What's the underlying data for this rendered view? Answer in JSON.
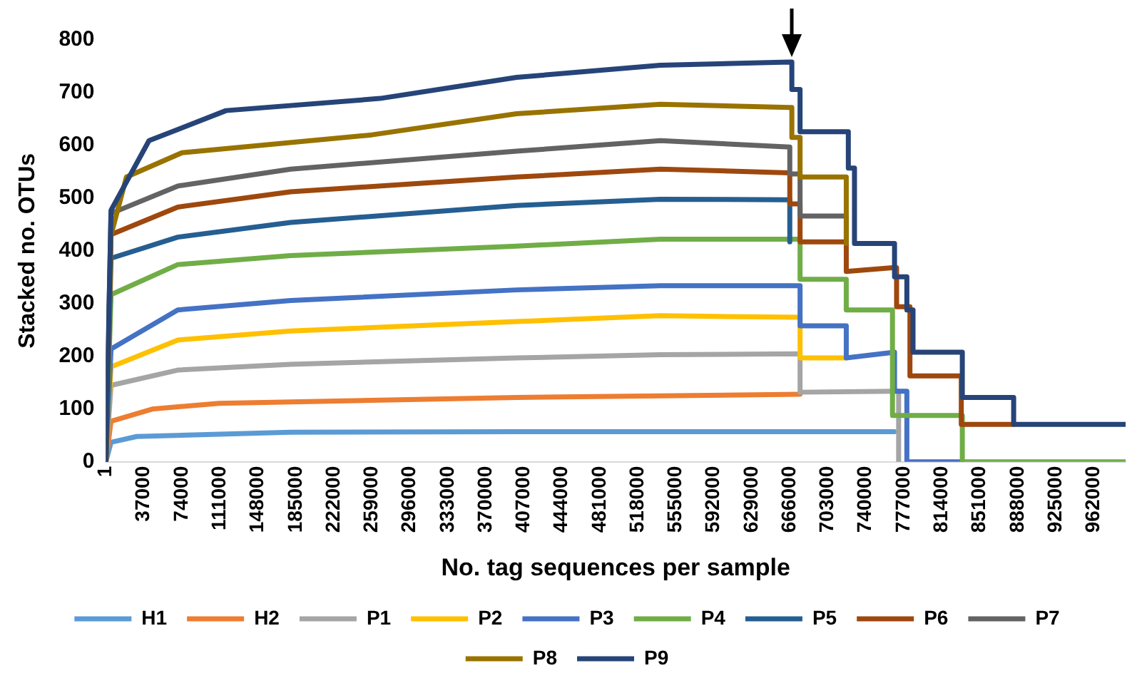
{
  "chart_data": {
    "type": "line",
    "xlabel": "No. tag sequences per sample",
    "ylabel": "Stacked no. OTUs",
    "xlim": [
      1,
      993000
    ],
    "xticks": [
      1,
      37000,
      74000,
      111000,
      148000,
      185000,
      222000,
      259000,
      296000,
      333000,
      370000,
      407000,
      444000,
      481000,
      518000,
      555000,
      592000,
      629000,
      666000,
      703000,
      740000,
      777000,
      814000,
      851000,
      888000,
      925000,
      962000
    ],
    "ylim": [
      0,
      800
    ],
    "yticks": [
      0,
      100,
      200,
      300,
      400,
      500,
      600,
      700,
      800
    ],
    "grid": false,
    "legend": "bottom",
    "marker": "none",
    "line_style": "solid",
    "series": [
      {
        "name": "H1",
        "color": "#5b9bd5",
        "x": [
          1,
          5000,
          30000,
          180000,
          400000,
          666000,
          768000
        ],
        "values": [
          0,
          37,
          48,
          56,
          57,
          57,
          57
        ]
      },
      {
        "name": "H2",
        "color": "#ed7d31",
        "x": [
          1,
          5000,
          45000,
          110000,
          400000,
          676000
        ],
        "values": [
          0,
          77,
          100,
          111,
          122,
          128
        ]
      },
      {
        "name": "P1",
        "color": "#a5a5a5",
        "x": [
          1,
          5000,
          70000,
          180000,
          400000,
          540000,
          676000,
          676000,
          768000,
          772000,
          772000
        ],
        "values": [
          0,
          145,
          174,
          185,
          197,
          203,
          205,
          132,
          134,
          134,
          0
        ]
      },
      {
        "name": "P2",
        "color": "#ffc000",
        "x": [
          1,
          5000,
          70000,
          180000,
          400000,
          540000,
          676000,
          676000,
          721000
        ],
        "values": [
          0,
          180,
          231,
          248,
          266,
          277,
          274,
          197,
          197
        ]
      },
      {
        "name": "P3",
        "color": "#4472c4",
        "x": [
          1,
          5000,
          70000,
          180000,
          400000,
          540000,
          676000,
          676000,
          721000,
          721000,
          768000,
          768000,
          780000,
          780000,
          834000
        ],
        "values": [
          0,
          214,
          288,
          306,
          326,
          334,
          334,
          258,
          258,
          197,
          208,
          134,
          134,
          0,
          0
        ]
      },
      {
        "name": "P4",
        "color": "#70ad47",
        "x": [
          1,
          5000,
          70000,
          180000,
          400000,
          540000,
          676000,
          676000,
          721000,
          721000,
          766000,
          766000,
          834000,
          834000,
          993000
        ],
        "values": [
          0,
          317,
          374,
          391,
          409,
          422,
          422,
          346,
          346,
          288,
          288,
          88,
          88,
          0,
          0
        ]
      },
      {
        "name": "P5",
        "color": "#255e91",
        "x": [
          1,
          5000,
          70000,
          180000,
          400000,
          540000,
          666000,
          666000
        ],
        "values": [
          0,
          386,
          426,
          454,
          486,
          498,
          497,
          417
        ]
      },
      {
        "name": "P6",
        "color": "#9e480e",
        "x": [
          1,
          5000,
          70000,
          180000,
          400000,
          540000,
          666000,
          666000,
          676000,
          676000,
          721000,
          721000,
          766000,
          770000,
          770000,
          783000,
          783000,
          833000,
          833000,
          884000
        ],
        "values": [
          0,
          431,
          483,
          512,
          540,
          555,
          548,
          489,
          489,
          417,
          417,
          361,
          368,
          368,
          294,
          294,
          163,
          163,
          71,
          71
        ]
      },
      {
        "name": "P7",
        "color": "#636363",
        "x": [
          1,
          5000,
          70000,
          180000,
          400000,
          540000,
          666000,
          666000,
          676000,
          676000,
          721000,
          721000
        ],
        "values": [
          0,
          471,
          523,
          555,
          589,
          609,
          597,
          546,
          546,
          466,
          466,
          414
        ]
      },
      {
        "name": "P8",
        "color": "#997300",
        "x": [
          1,
          5000,
          20000,
          74000,
          259000,
          400000,
          540000,
          666000,
          668000,
          668000,
          676000,
          676000,
          721000,
          721000
        ],
        "values": [
          0,
          430,
          540,
          586,
          620,
          660,
          678,
          672,
          672,
          615,
          615,
          540,
          540,
          414
        ]
      },
      {
        "name": "P9",
        "color": "#264478",
        "x": [
          1,
          5000,
          42000,
          117000,
          267000,
          400000,
          540000,
          666000,
          668000,
          668000,
          676000,
          676000,
          723000,
          723000,
          729000,
          729000,
          768000,
          768000,
          780000,
          780000,
          786000,
          786000,
          834000,
          834000,
          884000,
          884000,
          993000
        ],
        "values": [
          0,
          477,
          609,
          666,
          689,
          729,
          752,
          758,
          758,
          706,
          706,
          626,
          626,
          557,
          557,
          414,
          414,
          351,
          351,
          288,
          288,
          208,
          208,
          122,
          122,
          71,
          71
        ]
      }
    ]
  }
}
